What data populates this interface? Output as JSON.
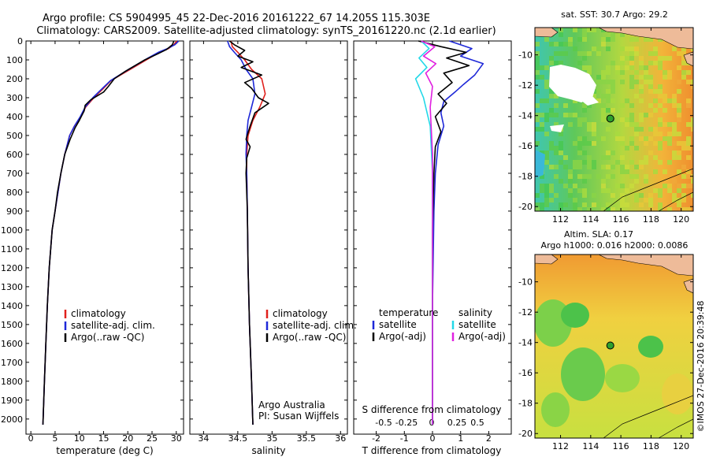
{
  "header": {
    "title_line1": "Argo profile: CS 5904995_45 22-Dec-2016 20161222_67 14.205S 115.303E",
    "title_line2": "Climatology: CARS2009. Satellite-adjusted climatology: synTS_20161220.nc (2.1d earlier)"
  },
  "colors": {
    "climatology": "#e0201c",
    "satellite": "#1e28d8",
    "argo": "#000000",
    "sat_salinity": "#22d8e8",
    "argo_adj_salinity": "#e020e0",
    "land": "#eebb99",
    "marker": "#2ea02e"
  },
  "chart_data": [
    {
      "type": "line",
      "panel": "temperature",
      "xlabel": "temperature (deg C)",
      "xlim": [
        -1,
        31.5
      ],
      "xticks": [
        0,
        5,
        10,
        15,
        20,
        25,
        30
      ],
      "ylim": [
        2080,
        0
      ],
      "yticks": [
        0,
        100,
        200,
        300,
        400,
        500,
        600,
        700,
        800,
        900,
        1000,
        1100,
        1200,
        1300,
        1400,
        1500,
        1600,
        1700,
        1800,
        1900,
        2000
      ],
      "legend": [
        "climatology",
        "satellite-adj. clim.",
        "Argo(..raw -QC)"
      ],
      "series": [
        {
          "name": "climatology",
          "x": [
            30.1,
            29.5,
            28.4,
            26.5,
            24.5,
            22.5,
            20.5,
            18.5,
            16.5,
            15.0,
            13.0,
            11.3,
            10.3,
            9.0,
            8.0,
            7.0,
            6.2,
            5.6,
            5.0,
            4.4,
            3.8,
            3.4,
            3.1,
            2.8,
            2.5
          ],
          "y": [
            0,
            20,
            40,
            60,
            90,
            120,
            150,
            180,
            210,
            250,
            300,
            350,
            400,
            450,
            500,
            600,
            700,
            800,
            900,
            1000,
            1200,
            1400,
            1600,
            1800,
            2030
          ]
        },
        {
          "name": "satellite-adj. clim.",
          "x": [
            30.5,
            29.7,
            28.2,
            26.3,
            24.2,
            22.2,
            20.2,
            18.3,
            16.4,
            14.8,
            12.8,
            11.2,
            10.2,
            9.0,
            8.0,
            7.0,
            6.2,
            5.6,
            5.0,
            4.4,
            3.8,
            3.4,
            3.1,
            2.8,
            2.5
          ],
          "y": [
            0,
            20,
            40,
            60,
            90,
            120,
            150,
            180,
            210,
            250,
            300,
            350,
            400,
            450,
            500,
            600,
            700,
            800,
            900,
            1000,
            1200,
            1400,
            1600,
            1800,
            2030
          ]
        },
        {
          "name": "Argo(..raw -QC)",
          "x": [
            29.5,
            29.2,
            28.0,
            26.0,
            23.5,
            21.5,
            19.5,
            17.2,
            16.0,
            15.0,
            12.4,
            11.2,
            11.0,
            10.0,
            9.1,
            8.1,
            7.0,
            6.2,
            5.5,
            5.0,
            4.4,
            3.8,
            3.4,
            3.1,
            2.8,
            2.5
          ],
          "y": [
            0,
            20,
            45,
            70,
            100,
            130,
            160,
            200,
            240,
            270,
            310,
            340,
            370,
            420,
            460,
            520,
            600,
            700,
            800,
            900,
            1000,
            1200,
            1400,
            1600,
            1800,
            2030
          ]
        }
      ]
    },
    {
      "type": "line",
      "panel": "salinity",
      "xlabel": "salinity",
      "xlim": [
        33.8,
        36.1
      ],
      "xticks": [
        34,
        34.5,
        35,
        35.5,
        36
      ],
      "ylim": [
        2080,
        0
      ],
      "legend": [
        "climatology",
        "satellite-adj. clim.",
        "Argo(..raw -QC)"
      ],
      "annotations": [
        "Argo Australia",
        "PI: Susan Wijffels"
      ],
      "series": [
        {
          "name": "climatology",
          "x": [
            34.4,
            34.42,
            34.5,
            34.6,
            34.7,
            34.85,
            34.9,
            34.82,
            34.72,
            34.65,
            34.63,
            34.63,
            34.64,
            34.65,
            34.67,
            34.7,
            34.72
          ],
          "y": [
            0,
            30,
            60,
            100,
            150,
            200,
            280,
            350,
            420,
            500,
            600,
            700,
            900,
            1200,
            1500,
            1800,
            2030
          ]
        },
        {
          "name": "satellite-adj. clim.",
          "x": [
            34.35,
            34.38,
            34.45,
            34.55,
            34.62,
            34.72,
            34.75,
            34.7,
            34.65,
            34.63,
            34.62,
            34.63,
            34.64,
            34.65,
            34.67,
            34.7,
            34.72
          ],
          "y": [
            0,
            30,
            60,
            100,
            150,
            200,
            280,
            350,
            420,
            500,
            600,
            700,
            900,
            1200,
            1500,
            1800,
            2030
          ]
        },
        {
          "name": "Argo(..raw -QC)",
          "x": [
            34.38,
            34.45,
            34.6,
            34.5,
            34.72,
            34.55,
            34.85,
            34.6,
            34.7,
            34.8,
            34.95,
            34.75,
            34.68,
            34.62,
            34.68,
            34.63,
            34.62,
            34.64,
            34.65,
            34.67,
            34.7,
            34.72
          ],
          "y": [
            0,
            20,
            50,
            80,
            110,
            140,
            180,
            220,
            250,
            300,
            330,
            380,
            450,
            520,
            560,
            620,
            700,
            900,
            1200,
            1500,
            1800,
            2030
          ]
        }
      ]
    },
    {
      "type": "line",
      "panel": "differences",
      "xlabel": "T difference from climatology",
      "xlim": [
        -2.8,
        2.8
      ],
      "xticks": [
        -2,
        -1,
        0,
        1,
        2
      ],
      "title_s_axis": "S difference from climatology",
      "s_ticks": [
        "-0.5",
        "-0.25",
        "0",
        "0.25",
        "0.5"
      ],
      "ylim": [
        2080,
        0
      ],
      "legend_temperature": {
        "title": "temperature",
        "items": [
          "satellite",
          "Argo(-adj)"
        ]
      },
      "legend_salinity": {
        "title": "salinity",
        "items": [
          "satellite",
          "Argo(-adj)"
        ]
      },
      "series": [
        {
          "name": "T satellite",
          "x": [
            0.6,
            1.4,
            1.0,
            1.8,
            1.5,
            1.1,
            0.8,
            0.4,
            0.3,
            0.4,
            0.2,
            0.1,
            0.05,
            0.0,
            0.0
          ],
          "y": [
            0,
            40,
            80,
            120,
            180,
            230,
            270,
            320,
            380,
            450,
            550,
            700,
            900,
            1400,
            2030
          ]
        },
        {
          "name": "T Argo(-adj)",
          "x": [
            -0.5,
            0.3,
            1.2,
            0.5,
            1.3,
            0.4,
            0.7,
            0.2,
            0.5,
            0.1,
            0.3,
            0.1,
            0.05,
            0.0,
            0.0
          ],
          "y": [
            0,
            30,
            60,
            90,
            130,
            170,
            220,
            280,
            330,
            400,
            480,
            560,
            700,
            1000,
            2030
          ]
        },
        {
          "name": "S satellite",
          "x": [
            -0.1,
            -0.03,
            -0.12,
            -0.05,
            -0.15,
            -0.08,
            -0.02,
            0.0,
            0.0
          ],
          "y": [
            0,
            40,
            90,
            140,
            200,
            300,
            450,
            700,
            2030
          ]
        },
        {
          "name": "S Argo(-adj)",
          "x": [
            -0.1,
            0.02,
            -0.08,
            0.03,
            -0.06,
            0.0,
            -0.02,
            0.0,
            0.0
          ],
          "y": [
            0,
            30,
            80,
            120,
            170,
            240,
            350,
            600,
            2030
          ]
        }
      ]
    },
    {
      "type": "heatmap",
      "panel": "sst_map",
      "title": "sat. SST: 30.7  Argo: 29.2",
      "xlim": [
        110.3,
        120.8
      ],
      "xticks": [
        112,
        114,
        116,
        118,
        120
      ],
      "ylim": [
        -20.3,
        -8.2
      ],
      "yticks": [
        -10,
        -12,
        -14,
        -16,
        -18,
        -20
      ],
      "marker": {
        "lon": 115.3,
        "lat": -14.2
      }
    },
    {
      "type": "heatmap",
      "panel": "sla_map",
      "title_line1": "Altim. SLA: 0.17",
      "title_line2": "Argo h1000: 0.016 h2000: 0.0086",
      "xlim": [
        110.3,
        120.8
      ],
      "xticks": [
        112,
        114,
        116,
        118,
        120
      ],
      "ylim": [
        -20.3,
        -8.2
      ],
      "yticks": [
        -10,
        -12,
        -14,
        -16,
        -18,
        -20
      ],
      "marker": {
        "lon": 115.3,
        "lat": -14.2
      }
    }
  ],
  "side_label": "©IMOS 27-Dec-2016 20:39:48"
}
